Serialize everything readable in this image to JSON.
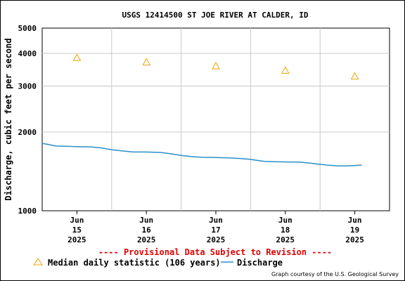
{
  "chart_data": {
    "type": "line",
    "title": "USGS 12414500 ST JOE RIVER AT CALDER, ID",
    "ylabel": "Discharge, cubic feet per second",
    "xlabel": "",
    "y_scale": "log",
    "ylim": [
      1000,
      5000
    ],
    "y_ticks": [
      {
        "value": 1000,
        "label": "1000"
      },
      {
        "value": 2000,
        "label": "2000"
      },
      {
        "value": 3000,
        "label": "3000"
      },
      {
        "value": 4000,
        "label": "4000"
      },
      {
        "value": 5000,
        "label": "5000"
      }
    ],
    "x_ticks": [
      {
        "day": 15,
        "lines": [
          "Jun",
          "15",
          "2025"
        ]
      },
      {
        "day": 16,
        "lines": [
          "Jun",
          "16",
          "2025"
        ]
      },
      {
        "day": 17,
        "lines": [
          "Jun",
          "17",
          "2025"
        ]
      },
      {
        "day": 18,
        "lines": [
          "Jun",
          "18",
          "2025"
        ]
      },
      {
        "day": 19,
        "lines": [
          "Jun",
          "19",
          "2025"
        ]
      }
    ],
    "grid": true,
    "series": [
      {
        "name": "Discharge",
        "kind": "line",
        "color": "#2a8fc8",
        "points": [
          [
            14.5,
            1810
          ],
          [
            14.6,
            1790
          ],
          [
            14.7,
            1768
          ],
          [
            14.85,
            1765
          ],
          [
            15.0,
            1760
          ],
          [
            15.2,
            1755
          ],
          [
            15.35,
            1740
          ],
          [
            15.5,
            1712
          ],
          [
            15.65,
            1695
          ],
          [
            15.8,
            1680
          ],
          [
            16.0,
            1678
          ],
          [
            16.2,
            1672
          ],
          [
            16.35,
            1652
          ],
          [
            16.5,
            1628
          ],
          [
            16.65,
            1612
          ],
          [
            16.8,
            1602
          ],
          [
            17.0,
            1598
          ],
          [
            17.2,
            1594
          ],
          [
            17.35,
            1585
          ],
          [
            17.5,
            1572
          ],
          [
            17.6,
            1558
          ],
          [
            17.7,
            1545
          ],
          [
            17.85,
            1540
          ],
          [
            18.0,
            1538
          ],
          [
            18.2,
            1535
          ],
          [
            18.35,
            1522
          ],
          [
            18.5,
            1506
          ],
          [
            18.6,
            1495
          ],
          [
            18.75,
            1485
          ],
          [
            18.9,
            1485
          ],
          [
            19.0,
            1490
          ],
          [
            19.1,
            1495
          ]
        ]
      },
      {
        "name": "Median daily statistic (106 years)",
        "kind": "marker",
        "color": "#e8a400",
        "points": [
          [
            15,
            3850
          ],
          [
            16,
            3700
          ],
          [
            17,
            3580
          ],
          [
            18,
            3440
          ],
          [
            19,
            3270
          ]
        ]
      }
    ],
    "annotations": {
      "provisional": "---- Provisional Data Subject to Revision ----",
      "credit": "Graph courtesy of the U.S. Geological Survey"
    },
    "legend": {
      "placement": "bottom",
      "items": [
        {
          "label": "Median daily statistic (106 years)",
          "symbol": "triangle"
        },
        {
          "label": "Discharge",
          "symbol": "line"
        }
      ]
    }
  }
}
